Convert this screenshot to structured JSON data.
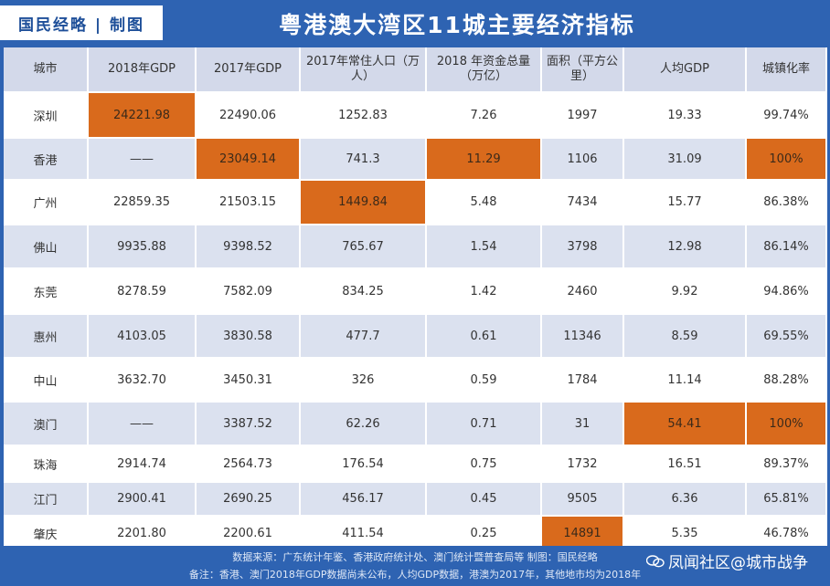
{
  "header": {
    "brand": "国民经略 | 制图",
    "title": "粤港澳大湾区11城主要经济指标"
  },
  "table": {
    "columns": [
      "城市",
      "2018年GDP",
      "2017年GDP",
      "2017年常住人口（万人）",
      "2018 年资金总量（万亿）",
      "面积（平方公里）",
      "人均GDP",
      "城镇化率"
    ],
    "rows": [
      [
        "深圳",
        "24221.98",
        "22490.06",
        "1252.83",
        "7.26",
        "1997",
        "19.33",
        "99.74%"
      ],
      [
        "香港",
        "——",
        "23049.14",
        "741.3",
        "11.29",
        "1106",
        "31.09",
        "100%"
      ],
      [
        "广州",
        "22859.35",
        "21503.15",
        "1449.84",
        "5.48",
        "7434",
        "15.77",
        "86.38%"
      ],
      [
        "佛山",
        "9935.88",
        "9398.52",
        "765.67",
        "1.54",
        "3798",
        "12.98",
        "86.14%"
      ],
      [
        "东莞",
        "8278.59",
        "7582.09",
        "834.25",
        "1.42",
        "2460",
        "9.92",
        "94.86%"
      ],
      [
        "惠州",
        "4103.05",
        "3830.58",
        "477.7",
        "0.61",
        "11346",
        "8.59",
        "69.55%"
      ],
      [
        "中山",
        "3632.70",
        "3450.31",
        "326",
        "0.59",
        "1784",
        "11.14",
        "88.28%"
      ],
      [
        "澳门",
        "——",
        "3387.52",
        "62.26",
        "0.71",
        "31",
        "54.41",
        "100%"
      ],
      [
        "珠海",
        "2914.74",
        "2564.73",
        "176.54",
        "0.75",
        "1732",
        "16.51",
        "89.37%"
      ],
      [
        "江门",
        "2900.41",
        "2690.25",
        "456.17",
        "0.45",
        "9505",
        "6.36",
        "65.81%"
      ],
      [
        "肇庆",
        "2201.80",
        "2200.61",
        "411.54",
        "0.25",
        "14891",
        "5.35",
        "46.78%"
      ]
    ]
  },
  "footer": {
    "source": "数据来源：广东统计年鉴、香港政府统计处、澳门统计暨普查局等    制图：国民经略",
    "note": "备注：香港、澳门2018年GDP数据尚未公布，人均GDP数据，港澳为2017年，其他地市均为2018年"
  },
  "watermark": {
    "text": "凤闻社区@城市战争"
  },
  "colors": {
    "brand_blue": "#2e63b2",
    "highlight_orange": "#d96a1c",
    "row_alt": "#dbe1ef",
    "header_bg": "#d3d9ea"
  }
}
